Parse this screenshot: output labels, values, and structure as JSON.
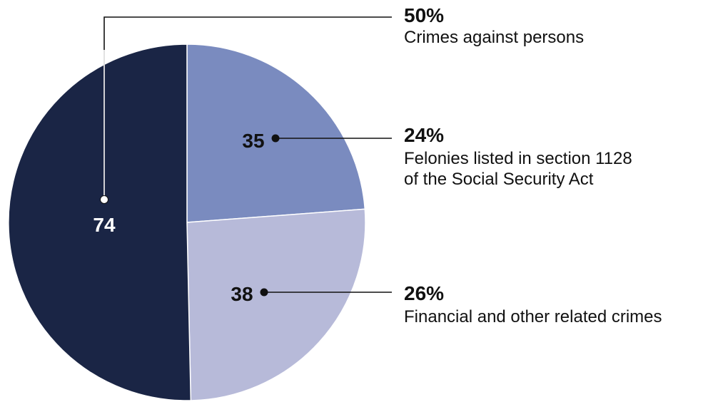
{
  "chart_data": {
    "type": "pie",
    "slices": [
      {
        "value": 35,
        "percent_label": "24%",
        "label_lines": [
          "Felonies listed in section 1128",
          "of the Social Security Act"
        ],
        "color": "#7a8bbf",
        "value_color": "#111111"
      },
      {
        "value": 38,
        "percent_label": "26%",
        "label_lines": [
          "Financial and other related crimes"
        ],
        "color": "#b7bad9",
        "value_color": "#111111"
      },
      {
        "value": 74,
        "percent_label": "50%",
        "label_lines": [
          "Crimes against persons"
        ],
        "color": "#1a2545",
        "value_color": "#ffffff"
      }
    ],
    "start_angle_deg": 0,
    "direction": "clockwise",
    "legend": "callouts-right"
  }
}
